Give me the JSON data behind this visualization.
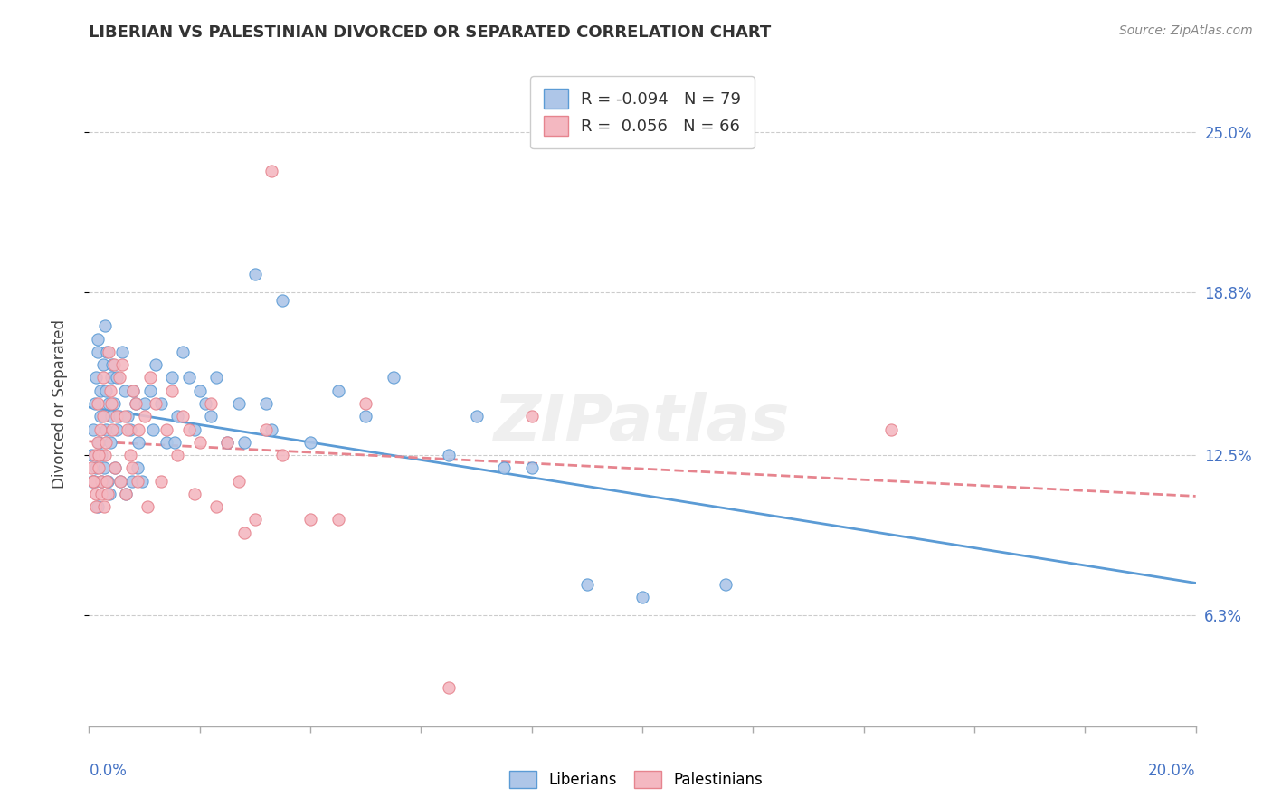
{
  "title": "LIBERIAN VS PALESTINIAN DIVORCED OR SEPARATED CORRELATION CHART",
  "source": "Source: ZipAtlas.com",
  "ylabel": "Divorced or Separated",
  "xlim": [
    0.0,
    20.0
  ],
  "ylim": [
    2.0,
    27.0
  ],
  "yticks": [
    6.3,
    12.5,
    18.8,
    25.0
  ],
  "ytick_labels": [
    "6.3%",
    "12.5%",
    "18.8%",
    "25.0%"
  ],
  "legend_R1": "-0.094",
  "legend_N1": "79",
  "legend_R2": "0.056",
  "legend_N2": "66",
  "color_liberian": "#aec6e8",
  "color_palestinian": "#f4b8c1",
  "color_liberian_line": "#5b9bd5",
  "color_palestinian_line": "#e6848e",
  "liberian_x": [
    0.05,
    0.08,
    0.1,
    0.12,
    0.15,
    0.15,
    0.18,
    0.2,
    0.2,
    0.22,
    0.25,
    0.28,
    0.3,
    0.3,
    0.32,
    0.35,
    0.38,
    0.4,
    0.4,
    0.42,
    0.45,
    0.5,
    0.5,
    0.55,
    0.6,
    0.65,
    0.7,
    0.75,
    0.8,
    0.85,
    0.9,
    1.0,
    1.1,
    1.2,
    1.3,
    1.5,
    1.6,
    1.7,
    1.8,
    2.0,
    2.1,
    2.3,
    2.5,
    2.7,
    3.0,
    3.2,
    3.5,
    4.5,
    5.5,
    6.5,
    7.0,
    7.5,
    8.0,
    9.0,
    10.0,
    11.5,
    0.06,
    0.09,
    0.13,
    0.16,
    0.23,
    0.27,
    0.33,
    0.37,
    0.47,
    0.57,
    0.67,
    0.77,
    0.87,
    0.95,
    1.15,
    1.4,
    1.55,
    1.9,
    2.2,
    2.8,
    3.3,
    4.0,
    5.0
  ],
  "liberian_y": [
    12.5,
    13.5,
    14.5,
    15.5,
    16.5,
    17.0,
    13.0,
    14.0,
    15.0,
    12.5,
    16.0,
    17.5,
    13.5,
    15.0,
    16.5,
    14.5,
    13.0,
    15.5,
    14.0,
    16.0,
    14.5,
    13.5,
    15.5,
    14.0,
    16.5,
    15.0,
    14.0,
    13.5,
    15.0,
    14.5,
    13.0,
    14.5,
    15.0,
    16.0,
    14.5,
    15.5,
    14.0,
    16.5,
    15.5,
    15.0,
    14.5,
    15.5,
    13.0,
    14.5,
    19.5,
    14.5,
    18.5,
    15.0,
    15.5,
    12.5,
    14.0,
    12.0,
    12.0,
    7.5,
    7.0,
    7.5,
    11.5,
    11.5,
    12.0,
    10.5,
    11.5,
    12.0,
    11.5,
    11.0,
    12.0,
    11.5,
    11.0,
    11.5,
    12.0,
    11.5,
    13.5,
    13.0,
    13.0,
    13.5,
    14.0,
    13.0,
    13.5,
    13.0,
    14.0
  ],
  "palestinian_x": [
    0.05,
    0.07,
    0.1,
    0.12,
    0.15,
    0.15,
    0.18,
    0.2,
    0.22,
    0.25,
    0.25,
    0.28,
    0.3,
    0.32,
    0.35,
    0.38,
    0.4,
    0.42,
    0.45,
    0.5,
    0.55,
    0.6,
    0.65,
    0.7,
    0.75,
    0.8,
    0.85,
    0.9,
    1.0,
    1.1,
    1.2,
    1.4,
    1.5,
    1.7,
    1.8,
    2.0,
    2.2,
    2.5,
    2.7,
    3.0,
    3.2,
    3.5,
    4.5,
    5.0,
    14.5,
    0.08,
    0.13,
    0.17,
    0.23,
    0.27,
    0.33,
    0.47,
    0.57,
    0.67,
    0.77,
    0.87,
    1.05,
    1.3,
    1.6,
    1.9,
    2.3,
    2.8,
    3.3,
    4.0,
    6.5,
    8.0
  ],
  "palestinian_y": [
    12.0,
    11.5,
    12.5,
    11.0,
    13.0,
    14.5,
    12.0,
    13.5,
    11.5,
    14.0,
    15.5,
    12.5,
    13.0,
    11.5,
    16.5,
    15.0,
    14.5,
    13.5,
    16.0,
    14.0,
    15.5,
    16.0,
    14.0,
    13.5,
    12.5,
    15.0,
    14.5,
    13.5,
    14.0,
    15.5,
    14.5,
    13.5,
    15.0,
    14.0,
    13.5,
    13.0,
    14.5,
    13.0,
    11.5,
    10.0,
    13.5,
    12.5,
    10.0,
    14.5,
    13.5,
    11.5,
    10.5,
    12.5,
    11.0,
    10.5,
    11.0,
    12.0,
    11.5,
    11.0,
    12.0,
    11.5,
    10.5,
    11.5,
    12.5,
    11.0,
    10.5,
    9.5,
    23.5,
    10.0,
    3.5,
    14.0
  ]
}
